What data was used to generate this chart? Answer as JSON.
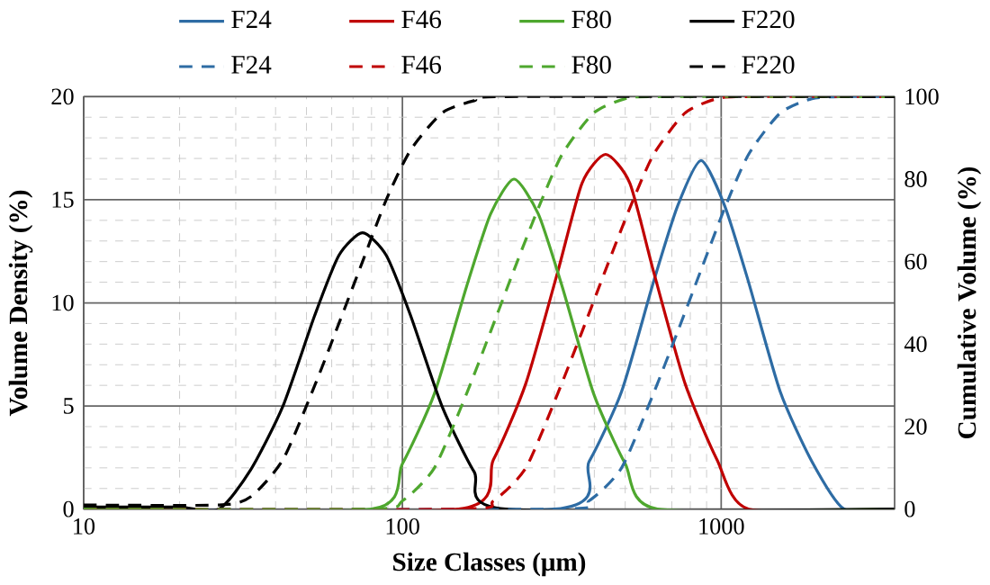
{
  "chart_data": {
    "type": "line",
    "xlabel": "Size Classes (μm)",
    "ylabel": "Volume Density (%)",
    "y2label": "Cumulative Volume (%)",
    "log": "x",
    "xlim": [
      10,
      3500
    ],
    "xticks": [
      10,
      100,
      1000
    ],
    "ylim": [
      0,
      20
    ],
    "yticks": [
      0,
      5,
      10,
      15,
      20
    ],
    "y2lim": [
      0,
      100
    ],
    "y2ticks": [
      0,
      20,
      40,
      60,
      80,
      100
    ],
    "grid": true,
    "legend": "top",
    "marker": "none",
    "series": [
      {
        "name": "F24",
        "color": "#2e6ca4",
        "line_style": "solid",
        "x": [
          10,
          300,
          385,
          487,
          613,
          730,
          865,
          1026,
          1219,
          1531,
          1927,
          2430,
          3500
        ],
        "values": [
          0,
          0,
          2.3,
          5.7,
          11,
          14.7,
          16.9,
          14.7,
          11,
          5.7,
          2.3,
          0,
          0
        ]
      },
      {
        "name": "F46",
        "color": "#c00000",
        "line_style": "solid",
        "x": [
          10,
          150,
          193,
          244,
          307,
          366,
          434,
          517,
          614,
          770,
          970,
          1221,
          3500
        ],
        "values": [
          0,
          0,
          2.4,
          6.1,
          11.5,
          15.8,
          17.2,
          15.8,
          11.5,
          6.1,
          2.4,
          0,
          0
        ]
      },
      {
        "name": "F80",
        "color": "#4ea72e",
        "line_style": "solid",
        "x": [
          10,
          80,
          100,
          126,
          159,
          189,
          224,
          267,
          317,
          398,
          500,
          631,
          3500
        ],
        "values": [
          0,
          0,
          2.2,
          5.6,
          10.8,
          14.3,
          16,
          14.3,
          10.8,
          5.6,
          2.2,
          0,
          0
        ]
      },
      {
        "name": "F220",
        "color": "#000000",
        "line_style": "solid",
        "x": [
          10,
          15,
          20,
          26.6,
          33.4,
          42.2,
          53.1,
          63.2,
          75,
          89,
          106,
          133,
          168,
          211,
          3500
        ],
        "values": [
          0.1,
          0.1,
          0.1,
          0,
          1.9,
          5,
          9.4,
          12.3,
          13.4,
          12.3,
          9.4,
          5,
          1.8,
          0,
          0
        ]
      },
      {
        "name": "F24",
        "color": "#2e6ca4",
        "line_style": "dashed",
        "axis": "y2",
        "x": [
          10,
          306,
          385,
          487,
          613,
          730,
          865,
          1026,
          1219,
          1531,
          1927,
          2430,
          3500
        ],
        "values": [
          0,
          0,
          2,
          10,
          28,
          43,
          58,
          73,
          86,
          96,
          99.5,
          100,
          100
        ]
      },
      {
        "name": "F46",
        "color": "#c00000",
        "line_style": "dashed",
        "axis": "y2",
        "x": [
          10,
          154,
          193,
          244,
          307,
          366,
          434,
          517,
          614,
          770,
          970,
          1221,
          3500
        ],
        "values": [
          0,
          0,
          2,
          10,
          28,
          43,
          58,
          73,
          86,
          96,
          99.5,
          100,
          100
        ]
      },
      {
        "name": "F80",
        "color": "#4ea72e",
        "line_style": "dashed",
        "axis": "y2",
        "x": [
          10,
          80,
          100,
          126,
          159,
          189,
          224,
          267,
          317,
          398,
          500,
          631,
          3500
        ],
        "values": [
          0,
          0,
          2,
          10,
          28,
          43,
          58,
          73,
          86,
          96,
          99.5,
          100,
          100
        ]
      },
      {
        "name": "F220",
        "color": "#000000",
        "line_style": "dashed",
        "axis": "y2",
        "x": [
          10,
          26.6,
          33.4,
          42.2,
          53.1,
          63.2,
          75,
          89,
          106,
          133,
          168,
          211,
          3500
        ],
        "values": [
          1,
          1,
          3,
          12,
          30,
          45,
          60,
          75,
          87,
          96,
          99,
          100,
          100
        ]
      }
    ]
  }
}
